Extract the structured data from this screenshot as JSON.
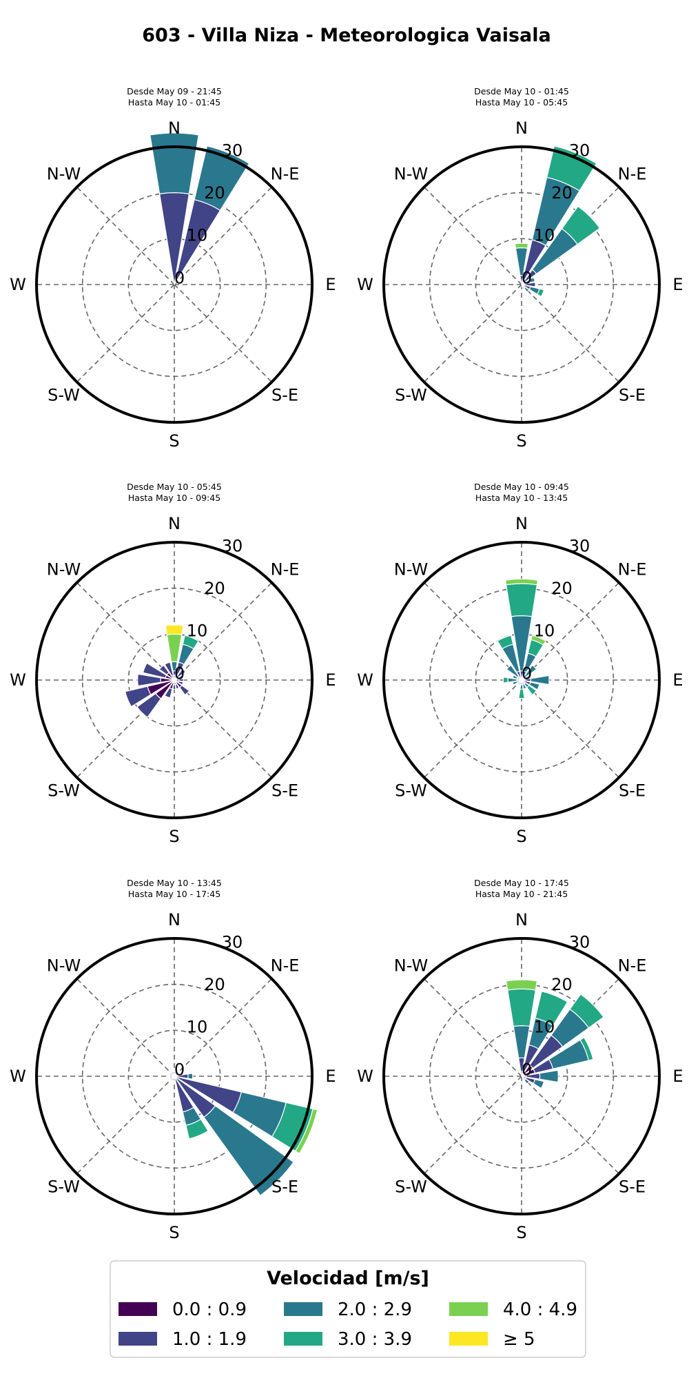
{
  "title": "603 - Villa Niza - Meteorologica Vaisala",
  "directions": [
    "N",
    "N-E",
    "E",
    "S-E",
    "S",
    "S-W",
    "W",
    "N-W"
  ],
  "legend": {
    "title": "Velocidad [m/s]",
    "bins": [
      "0.0 : 0.9",
      "1.0 : 1.9",
      "2.0 : 2.9",
      "3.0 : 3.9",
      "4.0 : 4.9",
      "≥  5"
    ],
    "colors": [
      "#440154",
      "#414487",
      "#2a788e",
      "#22a884",
      "#7ad151",
      "#fde725"
    ]
  },
  "chart_data": [
    {
      "type": "windrose",
      "subtitle": [
        "Desde May 09 - 21:45",
        "Hasta May 10 - 01:45"
      ],
      "radial_ticks": [
        0,
        10,
        20,
        30
      ],
      "rmax": 30,
      "sectors": [
        {
          "dir": 0,
          "segments": [
            0,
            20,
            13,
            0,
            0,
            0
          ]
        },
        {
          "dir": 22.5,
          "segments": [
            0,
            19,
            12,
            0,
            0,
            0
          ]
        }
      ]
    },
    {
      "type": "windrose",
      "subtitle": [
        "Desde May 10 - 01:45",
        "Hasta May 10 - 05:45"
      ],
      "radial_ticks": [
        0,
        10,
        20,
        30
      ],
      "rmax": 30,
      "sectors": [
        {
          "dir": 0,
          "segments": [
            0,
            2,
            6,
            0,
            1,
            0
          ]
        },
        {
          "dir": 22.5,
          "segments": [
            0,
            10,
            14,
            7,
            0,
            0
          ]
        },
        {
          "dir": 45,
          "segments": [
            0,
            4,
            11,
            6,
            0,
            0
          ]
        },
        {
          "dir": 67.5,
          "segments": [
            0,
            2,
            1,
            0,
            0,
            0
          ]
        },
        {
          "dir": 90,
          "segments": [
            0,
            3,
            0,
            0,
            0,
            0
          ]
        },
        {
          "dir": 112.5,
          "segments": [
            0,
            2,
            2,
            1,
            0,
            0
          ]
        },
        {
          "dir": 135,
          "segments": [
            0,
            1,
            1,
            0,
            0,
            0
          ]
        },
        {
          "dir": 157.5,
          "segments": [
            0,
            1,
            0,
            0,
            0,
            0
          ]
        }
      ]
    },
    {
      "type": "windrose",
      "subtitle": [
        "Desde May 10 - 05:45",
        "Hasta May 10 - 09:45"
      ],
      "radial_ticks": [
        0,
        10,
        20,
        30
      ],
      "rmax": 30,
      "sectors": [
        {
          "dir": 0,
          "segments": [
            1,
            1,
            2,
            0,
            6,
            2
          ]
        },
        {
          "dir": 22.5,
          "segments": [
            1,
            3,
            4,
            2,
            0,
            0
          ]
        },
        {
          "dir": 45,
          "segments": [
            1,
            2,
            0,
            0,
            0,
            0
          ]
        },
        {
          "dir": 67.5,
          "segments": [
            1,
            1,
            0,
            0,
            0,
            0
          ]
        },
        {
          "dir": 90,
          "segments": [
            1,
            1,
            0,
            0,
            0,
            0
          ]
        },
        {
          "dir": 112.5,
          "segments": [
            1,
            1,
            0,
            0,
            0,
            0
          ]
        },
        {
          "dir": 135,
          "segments": [
            2,
            2,
            0,
            0,
            0,
            0
          ]
        },
        {
          "dir": 157.5,
          "segments": [
            1,
            1,
            0,
            0,
            0,
            0
          ]
        },
        {
          "dir": 180,
          "segments": [
            1,
            1,
            0,
            0,
            0,
            0
          ]
        },
        {
          "dir": 202.5,
          "segments": [
            2,
            2,
            0,
            0,
            0,
            0
          ]
        },
        {
          "dir": 225,
          "segments": [
            5,
            5,
            0,
            0,
            0,
            0
          ]
        },
        {
          "dir": 247.5,
          "segments": [
            6,
            5,
            0,
            0,
            0,
            0
          ]
        },
        {
          "dir": 270,
          "segments": [
            3,
            5,
            0,
            0,
            0,
            0
          ]
        },
        {
          "dir": 292.5,
          "segments": [
            2,
            5,
            0,
            0,
            0,
            0
          ]
        },
        {
          "dir": 315,
          "segments": [
            2,
            2,
            0,
            0,
            0,
            0
          ]
        },
        {
          "dir": 337.5,
          "segments": [
            1,
            3,
            0,
            0,
            0,
            0
          ]
        }
      ]
    },
    {
      "type": "windrose",
      "subtitle": [
        "Desde May 10 - 09:45",
        "Hasta May 10 - 13:45"
      ],
      "radial_ticks": [
        0,
        10,
        20,
        30
      ],
      "rmax": 30,
      "sectors": [
        {
          "dir": 0,
          "segments": [
            0,
            2,
            12,
            7,
            1,
            0
          ]
        },
        {
          "dir": 22.5,
          "segments": [
            0,
            2,
            4,
            3,
            1,
            0
          ]
        },
        {
          "dir": 45,
          "segments": [
            0,
            1,
            3,
            0,
            0,
            0
          ]
        },
        {
          "dir": 67.5,
          "segments": [
            0,
            1,
            1,
            0,
            0,
            0
          ]
        },
        {
          "dir": 90,
          "segments": [
            0,
            2,
            4,
            0,
            0,
            0
          ]
        },
        {
          "dir": 112.5,
          "segments": [
            0,
            2,
            2,
            0,
            0,
            0
          ]
        },
        {
          "dir": 135,
          "segments": [
            0,
            1,
            1,
            2,
            0,
            0
          ]
        },
        {
          "dir": 157.5,
          "segments": [
            0,
            1,
            1,
            0,
            0,
            0
          ]
        },
        {
          "dir": 180,
          "segments": [
            0,
            1,
            1,
            2,
            0,
            0
          ]
        },
        {
          "dir": 202.5,
          "segments": [
            0,
            1,
            0,
            0,
            0,
            0
          ]
        },
        {
          "dir": 225,
          "segments": [
            0,
            1,
            0,
            0,
            0,
            0
          ]
        },
        {
          "dir": 247.5,
          "segments": [
            0,
            1,
            1,
            0,
            0,
            0
          ]
        },
        {
          "dir": 270,
          "segments": [
            0,
            1,
            2,
            1,
            0,
            0
          ]
        },
        {
          "dir": 292.5,
          "segments": [
            0,
            1,
            1,
            0,
            0,
            0
          ]
        },
        {
          "dir": 315,
          "segments": [
            0,
            1,
            3,
            0,
            0,
            0
          ]
        },
        {
          "dir": 337.5,
          "segments": [
            0,
            2,
            6,
            2,
            0,
            0
          ]
        }
      ]
    },
    {
      "type": "windrose",
      "subtitle": [
        "Desde May 10 - 13:45",
        "Hasta May 10 - 17:45"
      ],
      "radial_ticks": [
        0,
        10,
        20,
        30
      ],
      "rmax": 30,
      "sectors": [
        {
          "dir": 0,
          "segments": [
            0,
            1,
            0,
            0,
            0,
            0
          ]
        },
        {
          "dir": 22.5,
          "segments": [
            0,
            1,
            0,
            0,
            0,
            0
          ]
        },
        {
          "dir": 45,
          "segments": [
            0,
            1,
            0,
            0,
            0,
            0
          ]
        },
        {
          "dir": 67.5,
          "segments": [
            0,
            1,
            0,
            0,
            0,
            0
          ]
        },
        {
          "dir": 90,
          "segments": [
            0,
            3,
            1,
            0,
            0,
            0
          ]
        },
        {
          "dir": 112.5,
          "segments": [
            0,
            15,
            10,
            6,
            1,
            0
          ]
        },
        {
          "dir": 135,
          "segments": [
            0,
            11,
            21,
            0,
            0,
            0
          ]
        },
        {
          "dir": 157.5,
          "segments": [
            0,
            8,
            3,
            3,
            0,
            0
          ]
        },
        {
          "dir": 180,
          "segments": [
            0,
            1,
            0,
            0,
            0,
            0
          ]
        },
        {
          "dir": 202.5,
          "segments": [
            0,
            1,
            0,
            0,
            0,
            0
          ]
        },
        {
          "dir": 225,
          "segments": [
            0,
            1,
            0,
            0,
            0,
            0
          ]
        },
        {
          "dir": 247.5,
          "segments": [
            0,
            1,
            0,
            0,
            0,
            0
          ]
        },
        {
          "dir": 270,
          "segments": [
            0,
            1,
            0,
            0,
            0,
            0
          ]
        },
        {
          "dir": 292.5,
          "segments": [
            0,
            1,
            0,
            0,
            0,
            0
          ]
        },
        {
          "dir": 315,
          "segments": [
            0,
            1,
            0,
            0,
            0,
            0
          ]
        },
        {
          "dir": 337.5,
          "segments": [
            0,
            1,
            0,
            0,
            0,
            0
          ]
        }
      ]
    },
    {
      "type": "windrose",
      "subtitle": [
        "Desde May 10 - 17:45",
        "Hasta May 10 - 21:45"
      ],
      "radial_ticks": [
        0,
        10,
        20,
        30
      ],
      "rmax": 30,
      "sectors": [
        {
          "dir": 0,
          "segments": [
            1,
            3,
            7,
            8,
            2,
            0
          ]
        },
        {
          "dir": 22.5,
          "segments": [
            1,
            6,
            6,
            6,
            0,
            0
          ]
        },
        {
          "dir": 45,
          "segments": [
            3,
            8,
            7,
            4,
            0,
            0
          ]
        },
        {
          "dir": 67.5,
          "segments": [
            3,
            4,
            8,
            1,
            0,
            0
          ]
        },
        {
          "dir": 90,
          "segments": [
            1,
            3,
            4,
            0,
            0,
            0
          ]
        },
        {
          "dir": 112.5,
          "segments": [
            1,
            2,
            2,
            0,
            0,
            0
          ]
        },
        {
          "dir": 135,
          "segments": [
            1,
            1,
            0,
            0,
            0,
            0
          ]
        }
      ]
    }
  ]
}
